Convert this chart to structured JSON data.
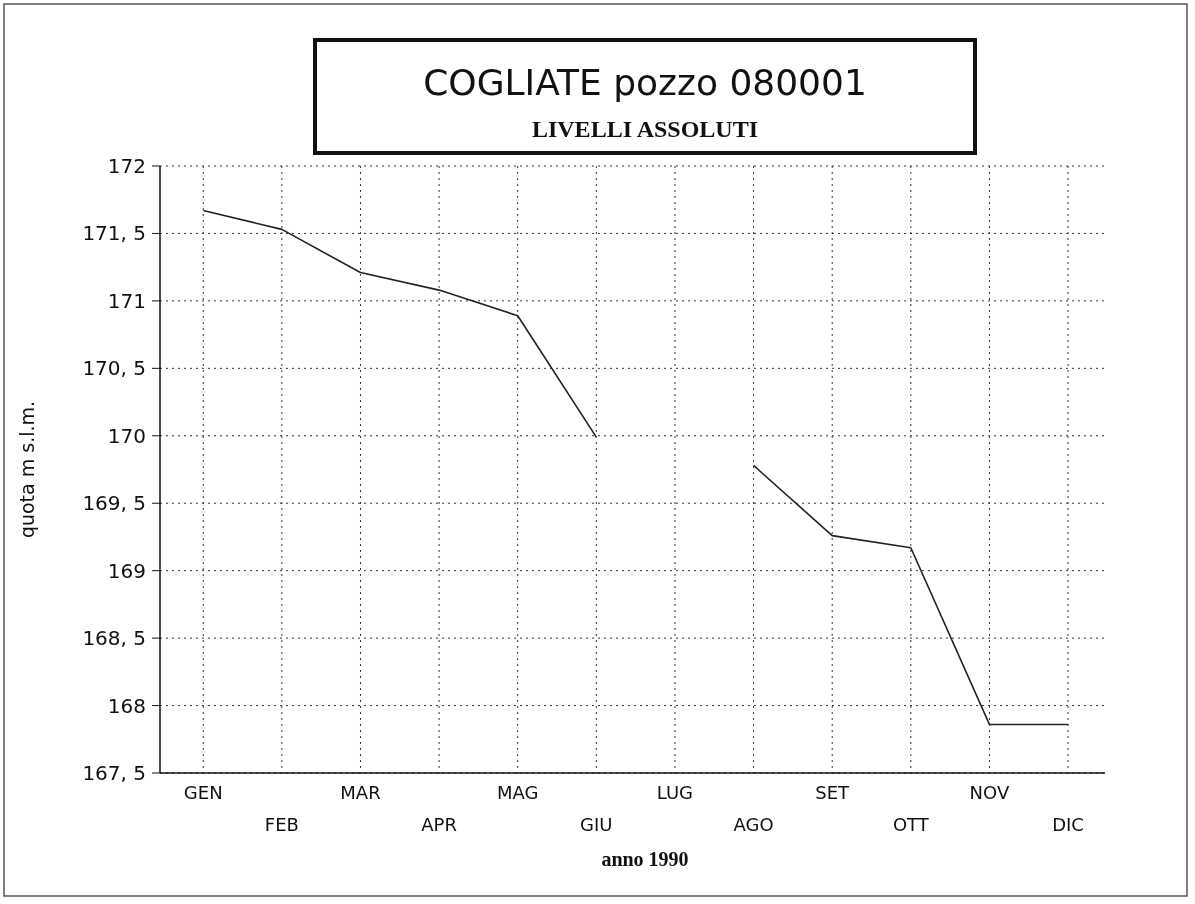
{
  "chart_data": {
    "type": "line",
    "title": "COGLIATE pozzo 080001",
    "subtitle": "LIVELLI ASSOLUTI",
    "xlabel": "anno 1990",
    "ylabel": "quota m  s.l.m.",
    "categories": [
      "GEN",
      "FEB",
      "MAR",
      "APR",
      "MAG",
      "GIU",
      "LUG",
      "AGO",
      "SET",
      "OTT",
      "NOV",
      "DIC"
    ],
    "series": [
      {
        "color": "#222222",
        "values": [
          171.67,
          171.53,
          171.21,
          171.08,
          170.89,
          169.99,
          null,
          169.78,
          169.26,
          169.17,
          167.86,
          167.86
        ]
      }
    ],
    "ylim": [
      167.5,
      172
    ],
    "yticks": [
      {
        "value": 167.5,
        "label": "167, 5"
      },
      168,
      {
        "value": 168.5,
        "label": "168, 5"
      },
      169,
      {
        "value": 169.5,
        "label": "169, 5"
      },
      170,
      {
        "value": 170.5,
        "label": "170, 5"
      },
      171,
      {
        "value": 171.5,
        "label": "171, 5"
      },
      172
    ],
    "grid": true,
    "marker": "none",
    "line_style": "solid"
  }
}
